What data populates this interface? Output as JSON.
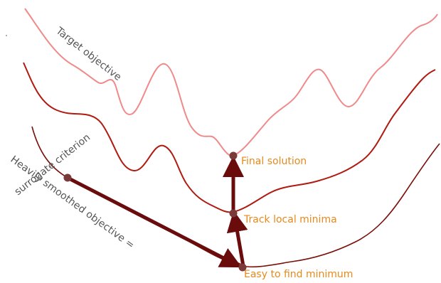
{
  "labels": {
    "target_objective": "Target objective",
    "heavily_smoothed_line1": "Heavily smoothed objective =",
    "heavily_smoothed_line2": "surrogate criterion",
    "final_solution": "Final solution",
    "track_local_minima": "Track local minima",
    "easy_to_find_minimum": "Easy to find minimum"
  },
  "colors": {
    "target_curve": "#f08a8a",
    "middle_curve": "#b11a10",
    "smoothed_curve": "#7a0f0a",
    "arrow": "#6b0c0c",
    "points": "#7a3a3a",
    "orange_text": "#e8891b",
    "gray_text": "#555555"
  }
}
